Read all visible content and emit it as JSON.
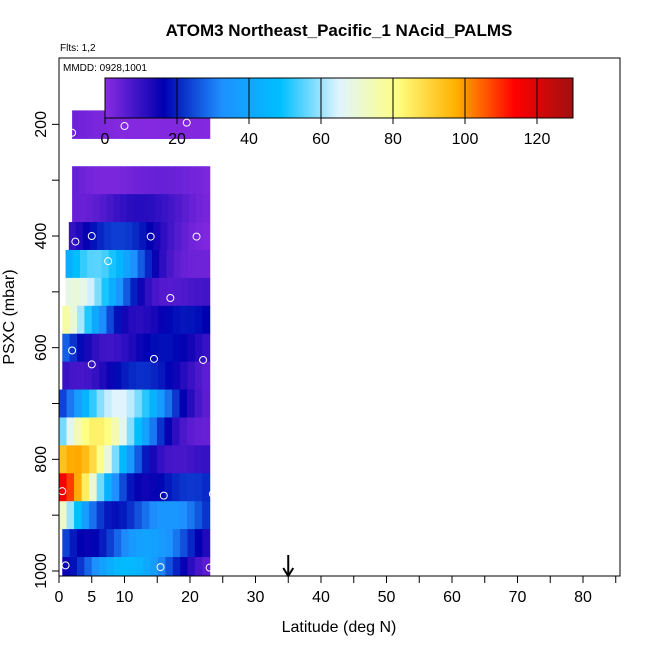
{
  "chart_data": {
    "type": "heatmap",
    "title": "ATOM3 Northeast_Pacific_1 NAcid_PALMS",
    "flights_label": "Flts: 1,2",
    "dates_label": "MMDD: 0928,1001",
    "xlabel": "Latitude (deg N)",
    "ylabel": "PSXC (mbar)",
    "xlim": [
      0,
      85
    ],
    "ylim": [
      1000,
      100
    ],
    "x_ticks": [
      0,
      5,
      10,
      20,
      30,
      40,
      50,
      60,
      70,
      80
    ],
    "y_ticks": [
      200,
      400,
      600,
      800,
      1000
    ],
    "colorbar": {
      "min": 0,
      "max": 130,
      "ticks": [
        0,
        20,
        40,
        60,
        80,
        100,
        120
      ],
      "colors": [
        "#8a2be2",
        "#0000b0",
        "#1e90ff",
        "#00bfff",
        "#e0f4ff",
        "#ffff80",
        "#ffb000",
        "#ff0000",
        "#a01010"
      ]
    },
    "cells": [
      {
        "p": 200,
        "lat0": 10,
        "lat1": 20,
        "v": 3
      },
      {
        "p": 200,
        "lat0": 2,
        "lat1": 23,
        "v": 4
      },
      {
        "p": 300,
        "lat0": 2,
        "lat1": 23,
        "v": 10
      },
      {
        "p": 350,
        "lat0": 2,
        "lat1": 23,
        "v": 20
      },
      {
        "p": 400,
        "lat0": 1.5,
        "lat1": 23,
        "v": 30
      },
      {
        "p": 450,
        "lat0": 1,
        "lat1": 23,
        "v": 60
      },
      {
        "p": 500,
        "lat0": 1,
        "lat1": 23,
        "v": 70
      },
      {
        "p": 550,
        "lat0": 0.5,
        "lat1": 23,
        "v": 85
      },
      {
        "p": 600,
        "lat0": 0.5,
        "lat1": 23,
        "v": 50
      },
      {
        "p": 650,
        "lat0": 0.5,
        "lat1": 23,
        "v": 40
      },
      {
        "p": 700,
        "lat0": 0,
        "lat1": 23,
        "v": 90
      },
      {
        "p": 750,
        "lat0": 0,
        "lat1": 23,
        "v": 95
      },
      {
        "p": 800,
        "lat0": 0,
        "lat1": 23,
        "v": 100
      },
      {
        "p": 850,
        "lat0": 0,
        "lat1": 23,
        "v": 120
      },
      {
        "p": 900,
        "lat0": 0,
        "lat1": 23,
        "v": 110
      },
      {
        "p": 950,
        "lat0": 0.5,
        "lat1": 23,
        "v": 80
      },
      {
        "p": 1000,
        "lat0": 0.5,
        "lat1": 23,
        "v": 70
      }
    ],
    "samples": [
      {
        "lat": 2,
        "p": 215
      },
      {
        "lat": 10,
        "p": 203
      },
      {
        "lat": 19.5,
        "p": 197
      },
      {
        "lat": 11,
        "p": 243
      },
      {
        "lat": 23.5,
        "p": 261
      },
      {
        "lat": 5,
        "p": 400
      },
      {
        "lat": 14,
        "p": 401
      },
      {
        "lat": 21,
        "p": 401
      },
      {
        "lat": 2.5,
        "p": 410
      },
      {
        "lat": 7.5,
        "p": 445
      },
      {
        "lat": 17,
        "p": 511
      },
      {
        "lat": 2,
        "p": 605
      },
      {
        "lat": 14.5,
        "p": 620
      },
      {
        "lat": 22,
        "p": 622
      },
      {
        "lat": 5,
        "p": 630
      },
      {
        "lat": 0.5,
        "p": 857
      },
      {
        "lat": 16,
        "p": 865
      },
      {
        "lat": 23.5,
        "p": 862
      },
      {
        "lat": 1,
        "p": 990
      },
      {
        "lat": 15.5,
        "p": 993
      },
      {
        "lat": 23,
        "p": 994
      }
    ],
    "marker_lat": 35
  }
}
